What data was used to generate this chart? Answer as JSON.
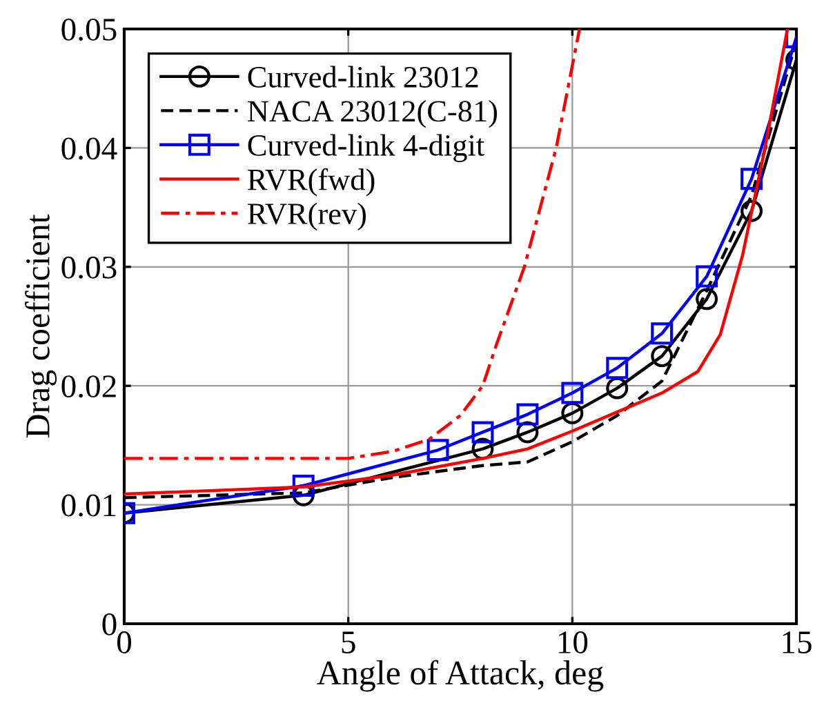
{
  "chart_data": {
    "type": "line",
    "xlabel": "Angle of Attack, deg",
    "ylabel": "Drag coefficient",
    "xlim": [
      0,
      15
    ],
    "ylim": [
      0,
      0.05
    ],
    "xticks": [
      0,
      5,
      10,
      15
    ],
    "yticks": [
      0,
      0.01,
      0.02,
      0.03,
      0.04,
      0.05
    ],
    "grid": true,
    "legend": "top left",
    "series": [
      {
        "name": "Curved-link 23012",
        "color": "#000000",
        "marker": "circle",
        "line_style": "solid",
        "x": [
          0,
          4,
          8,
          9,
          10,
          11,
          12,
          13,
          14,
          15
        ],
        "values": [
          0.0093,
          0.0108,
          0.0147,
          0.0161,
          0.0177,
          0.0198,
          0.0225,
          0.0273,
          0.0347,
          0.0474
        ]
      },
      {
        "name": "NACA 23012(C-81)",
        "color": "#000000",
        "marker": "none",
        "line_style": "dashed",
        "x": [
          0,
          4,
          6,
          8,
          9,
          10,
          11,
          12,
          13,
          14,
          15
        ],
        "values": [
          0.0106,
          0.011,
          0.0123,
          0.0133,
          0.0136,
          0.0153,
          0.0175,
          0.0204,
          0.028,
          0.036,
          0.049
        ]
      },
      {
        "name": "Curved-link 4-digit",
        "color": "#0000ff",
        "marker": "square",
        "line_style": "solid",
        "x": [
          0,
          4,
          7,
          8,
          9,
          10,
          11,
          12,
          13,
          14,
          15
        ],
        "values": [
          0.0093,
          0.0116,
          0.0146,
          0.0161,
          0.0176,
          0.0194,
          0.0215,
          0.0244,
          0.0292,
          0.0374,
          0.0493
        ]
      },
      {
        "name": "RVR(fwd)",
        "color": "#ff0000",
        "marker": "none",
        "line_style": "solid",
        "x": [
          0,
          4,
          6,
          8,
          9,
          10,
          11,
          12,
          12.8,
          13.3,
          13.8,
          14.3,
          14.6,
          14.8
        ],
        "values": [
          0.0109,
          0.0115,
          0.0125,
          0.0139,
          0.0147,
          0.0162,
          0.0178,
          0.0194,
          0.0212,
          0.0243,
          0.031,
          0.04,
          0.046,
          0.05
        ]
      },
      {
        "name": "RVR(rev)",
        "color": "#ff0000",
        "marker": "none",
        "line_style": "dashdot",
        "x": [
          0,
          5,
          6,
          6.8,
          7.5,
          8,
          8.3,
          8.93,
          9.64,
          10.16
        ],
        "values": [
          0.0139,
          0.0139,
          0.0145,
          0.0155,
          0.0175,
          0.02,
          0.0234,
          0.03,
          0.04,
          0.05
        ]
      }
    ]
  }
}
